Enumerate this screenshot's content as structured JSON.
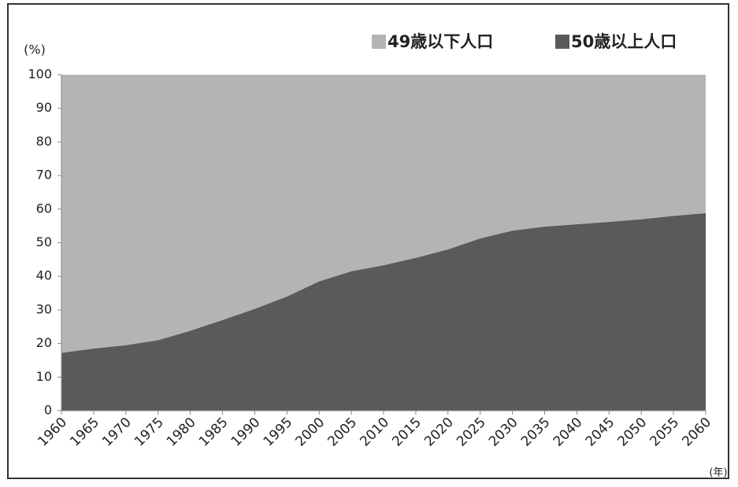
{
  "chart_data": {
    "type": "stacked_area",
    "y_label": "(%)",
    "x_label": "(年)",
    "categories": [
      "1960",
      "1965",
      "1970",
      "1975",
      "1980",
      "1985",
      "1990",
      "1995",
      "2000",
      "2005",
      "2010",
      "2015",
      "2020",
      "2025",
      "2030",
      "2035",
      "2040",
      "2045",
      "2050",
      "2055",
      "2060"
    ],
    "series": [
      {
        "name": "49歳以下人口",
        "color": "#b4b4b4",
        "values": [
          82.8,
          81.5,
          80.5,
          79,
          76.2,
          73,
          69.7,
          66,
          61.5,
          58.5,
          56.7,
          54.5,
          52,
          48.7,
          46.4,
          45.2,
          44.5,
          43.8,
          43,
          42,
          41.2
        ]
      },
      {
        "name": "50歳以上人口",
        "color": "#5a5a5a",
        "values": [
          17.2,
          18.5,
          19.5,
          21,
          23.8,
          27,
          30.3,
          34,
          38.5,
          41.5,
          43.3,
          45.5,
          48,
          51.3,
          53.6,
          54.8,
          55.5,
          56.2,
          57,
          58,
          58.8
        ]
      }
    ],
    "ylim": [
      0,
      100
    ],
    "yticks": [
      0,
      10,
      20,
      30,
      40,
      50,
      60,
      70,
      80,
      90,
      100
    ],
    "grid": false
  }
}
